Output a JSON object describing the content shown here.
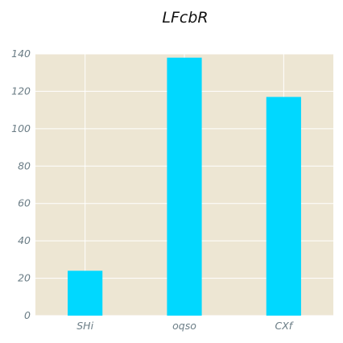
{
  "chart_data": {
    "type": "bar",
    "title": "LFcbR",
    "xlabel": "",
    "ylabel": "",
    "categories": [
      "SHi",
      "oqso",
      "CXf"
    ],
    "values": [
      24,
      138,
      117
    ],
    "ylim": [
      0,
      140
    ],
    "yticks": [
      0,
      20,
      40,
      60,
      80,
      100,
      120,
      140
    ],
    "ytick_labels": [
      "0",
      "20",
      "40",
      "60",
      "80",
      "100",
      "120",
      "140"
    ],
    "grid": true,
    "legend": "none"
  },
  "colors": {
    "bar": "#00d8ff",
    "plot_background": "#ede6d3",
    "grid": "#ffffff",
    "tick_text": "#6b7d86",
    "title_text": "#111111"
  }
}
